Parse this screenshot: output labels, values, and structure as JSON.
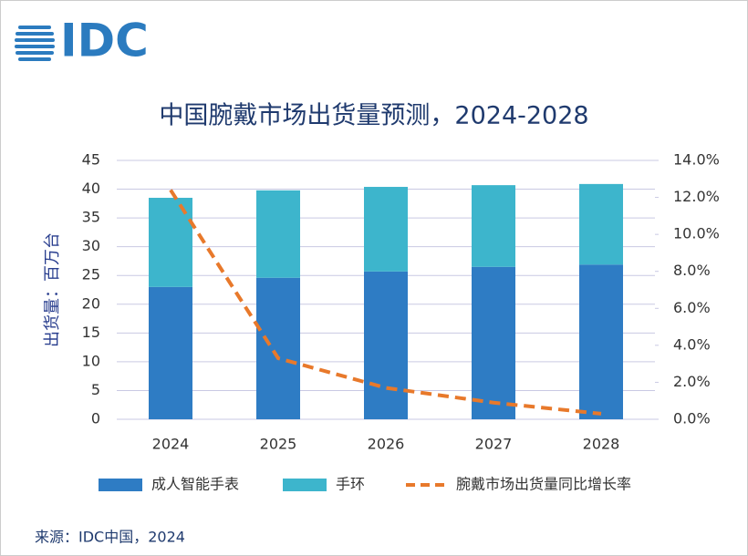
{
  "logo": "IDC",
  "source": "来源：IDC中国，2024",
  "chart_data": {
    "type": "bar",
    "title": "中国腕戴市场出货量预测，2024-2028",
    "y_label": "出货量：百万台",
    "categories": [
      "2024",
      "2025",
      "2026",
      "2027",
      "2028"
    ],
    "stacked": true,
    "series": [
      {
        "name": "成人智能手表",
        "color": "#2e7cc4",
        "values": [
          23.0,
          24.6,
          25.7,
          26.5,
          26.9
        ]
      },
      {
        "name": "手环",
        "color": "#3db5cc",
        "values": [
          15.5,
          15.2,
          14.7,
          14.2,
          14.0
        ]
      },
      {
        "name": "腕戴市场出货量同比增长率",
        "color": "#e8792b",
        "type": "line",
        "axis": "y2",
        "dashed": true,
        "values": [
          12.4,
          3.3,
          1.7,
          0.9,
          0.3
        ]
      }
    ],
    "ylim": [
      0,
      45
    ],
    "yticks": [
      0,
      5,
      10,
      15,
      20,
      25,
      30,
      35,
      40,
      45
    ],
    "y2lim": [
      0,
      14
    ],
    "y2ticks": [
      {
        "value": 0,
        "label": "0.0%"
      },
      {
        "value": 2,
        "label": "2.0%"
      },
      {
        "value": 4,
        "label": "4.0%"
      },
      {
        "value": 6,
        "label": "6.0%"
      },
      {
        "value": 8,
        "label": "8.0%"
      },
      {
        "value": 10,
        "label": "10.0%"
      },
      {
        "value": 12,
        "label": "12.0%"
      },
      {
        "value": 14,
        "label": "14.0%"
      }
    ],
    "grid": true,
    "legend": "bottom"
  }
}
